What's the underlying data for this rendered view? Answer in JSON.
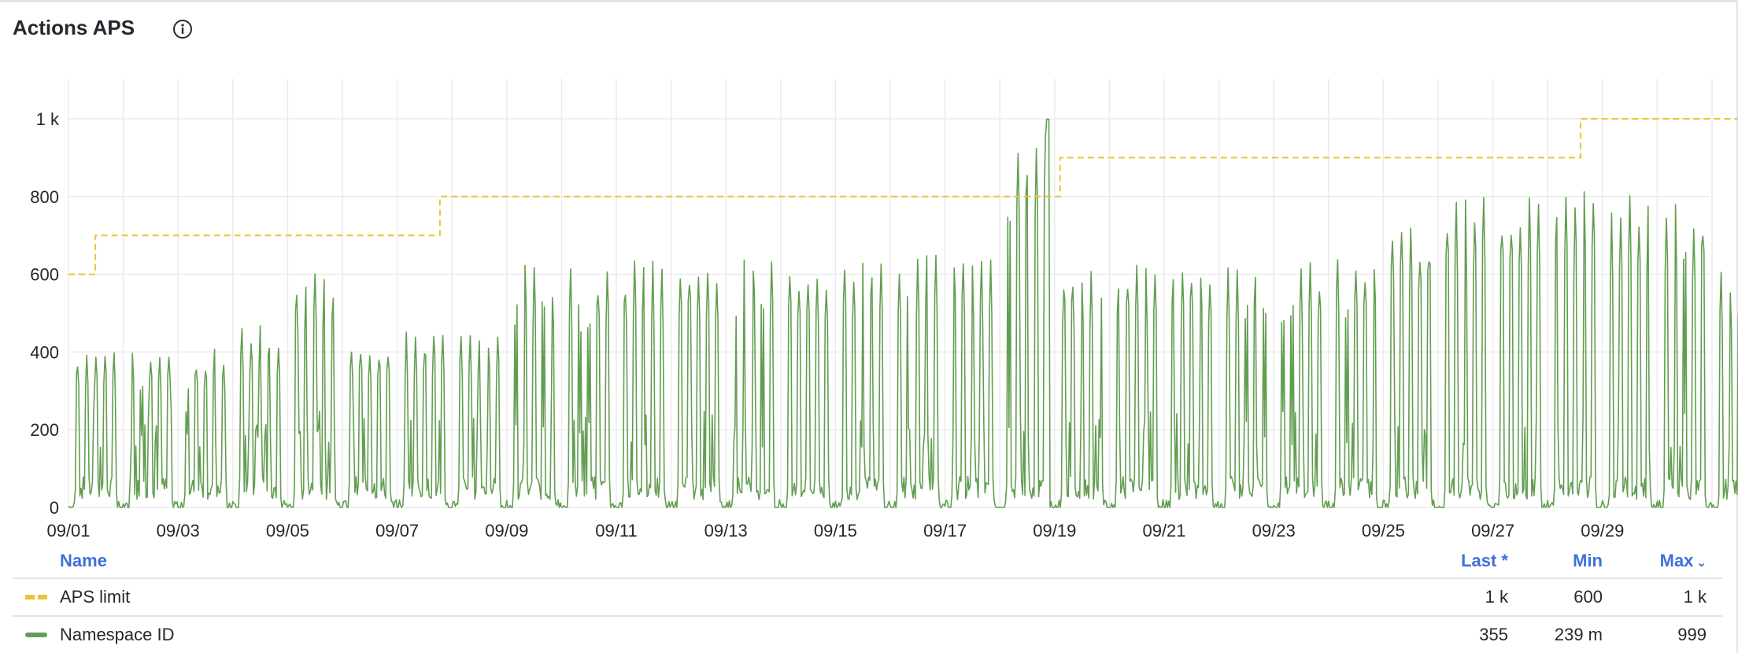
{
  "panel": {
    "title": "Actions APS",
    "info_icon": "info-circle-icon"
  },
  "legend": {
    "headers": {
      "name": "Name",
      "last": "Last *",
      "min": "Min",
      "max": "Max",
      "sort_icon": "chevron-down-icon"
    },
    "rows": [
      {
        "name": "APS limit",
        "last": "1 k",
        "min": "600",
        "max": "1 k",
        "color": "#e8c534",
        "style": "dashed"
      },
      {
        "name": "Namespace ID",
        "last": "355",
        "min": "239 m",
        "max": "999",
        "color": "#629e51",
        "style": "solid"
      }
    ]
  },
  "chart_data": {
    "type": "line",
    "title": "Actions APS",
    "xlabel": "",
    "ylabel": "",
    "ylim": [
      0,
      1000
    ],
    "yticks": [
      "0",
      "200",
      "400",
      "600",
      "800",
      "1 k"
    ],
    "ytick_values": [
      0,
      200,
      400,
      600,
      800,
      1000
    ],
    "xticks": [
      "09/01",
      "09/03",
      "09/05",
      "09/07",
      "09/09",
      "09/11",
      "09/13",
      "09/15",
      "09/17",
      "09/19",
      "09/21",
      "09/23",
      "09/25",
      "09/27",
      "09/29"
    ],
    "xrange_days": [
      0,
      31
    ],
    "grid": true,
    "legend": "bottom",
    "series": [
      {
        "name": "APS limit",
        "style": "dashed step",
        "color": "#e8c534",
        "steps": [
          {
            "from_day": 0,
            "value": 600
          },
          {
            "from_day": 0.49,
            "value": 700
          },
          {
            "from_day": 6.78,
            "value": 800
          },
          {
            "from_day": 18.1,
            "value": 900
          },
          {
            "from_day": 27.6,
            "value": 1000
          }
        ]
      },
      {
        "name": "Namespace ID",
        "style": "solid",
        "color": "#629e51",
        "daily_peak": [
          420,
          415,
          410,
          470,
          620,
          440,
          465,
          460,
          630,
          625,
          640,
          660,
          665,
          640,
          650,
          660,
          650,
          999,
          635,
          645,
          640,
          635,
          640,
          660,
          740,
          820,
          815,
          815,
          805,
          800,
          605
        ],
        "last": 355
      }
    ]
  }
}
